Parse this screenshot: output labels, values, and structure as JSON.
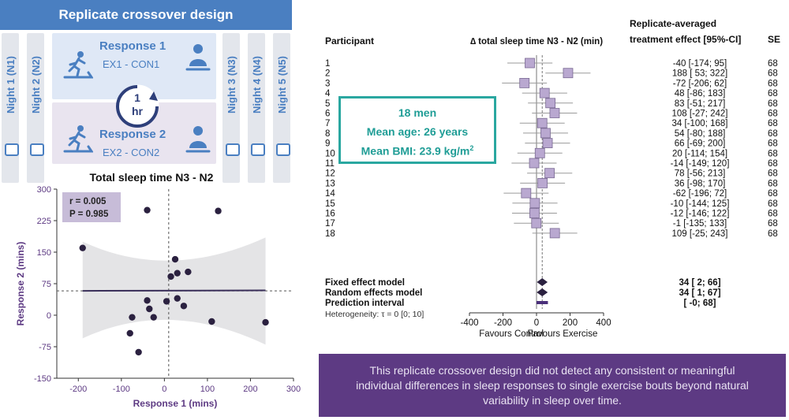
{
  "design": {
    "title": "Replicate crossover design",
    "nights": [
      "Night 1 (N1)",
      "Night 2 (N2)",
      "Night 3 (N3)",
      "Night 4 (N4)",
      "Night 5 (N5)"
    ],
    "response1_title": "Response 1",
    "response1_sub": "EX1 - CON1",
    "response2_title": "Response 2",
    "response2_sub": "EX2 - CON2",
    "gap_1": "1",
    "gap_2": "hr"
  },
  "info": {
    "line1": "18 men",
    "line2": "Mean age: 26 years",
    "line3_prefix": "Mean BMI: 23.9 kg/m",
    "line3_sup": "2"
  },
  "conclusion": "This replicate crossover design did not detect any consistent or meaningful individual differences in sleep responses to single exercise bouts beyond natural variability in sleep over time.",
  "colors": {
    "blue": "#4a7fc1",
    "purple": "#5d3a83",
    "teal": "#2aa7a0",
    "square": "#b9a8d0"
  },
  "chart_data": [
    {
      "type": "scatter",
      "title": "Total sleep time N3 - N2",
      "xlabel": "Response 1 (mins)",
      "ylabel": "Response 2 (mins)",
      "xlim": [
        -250,
        300
      ],
      "ylim": [
        -150,
        300
      ],
      "xticks": [
        -200,
        -100,
        0,
        100,
        200,
        300
      ],
      "yticks": [
        -150,
        -75,
        0,
        75,
        150,
        225,
        300
      ],
      "stats": {
        "r": "r = 0.005",
        "p": "P = 0.985"
      },
      "regression": {
        "y_at_xmin": 58,
        "y_at_xmax": 59
      },
      "mean_x": 10,
      "mean_y": 58,
      "points": [
        {
          "x": -190,
          "y": 160
        },
        {
          "x": -40,
          "y": 250
        },
        {
          "x": 125,
          "y": 248
        },
        {
          "x": 25,
          "y": 133
        },
        {
          "x": 30,
          "y": 100
        },
        {
          "x": 55,
          "y": 103
        },
        {
          "x": 15,
          "y": 92
        },
        {
          "x": -40,
          "y": 35
        },
        {
          "x": 5,
          "y": 33
        },
        {
          "x": 30,
          "y": 40
        },
        {
          "x": 45,
          "y": 22
        },
        {
          "x": -35,
          "y": 15
        },
        {
          "x": -25,
          "y": -5
        },
        {
          "x": -75,
          "y": -5
        },
        {
          "x": 110,
          "y": -15
        },
        {
          "x": 235,
          "y": -17
        },
        {
          "x": -80,
          "y": -43
        },
        {
          "x": -60,
          "y": -88
        }
      ]
    },
    {
      "type": "forest",
      "header_participant": "Participant",
      "header_axis": "∆ total sleep time N3 - N2 (min)",
      "header_effect_1": "Replicate-averaged",
      "header_effect_2": "treatment effect [95%-CI]",
      "header_se": "SE",
      "xlim": [
        -400,
        400
      ],
      "xticks": [
        -400,
        -200,
        0,
        200,
        400
      ],
      "xlabel_left": "Favours Control",
      "xlabel_right": "Favours Exercise",
      "rows": [
        {
          "id": "1",
          "est": -40,
          "lo": -174,
          "hi": 95,
          "ci": "-40 [-174;  95]",
          "se": "68"
        },
        {
          "id": "2",
          "est": 188,
          "lo": 53,
          "hi": 322,
          "ci": "188 [  53; 322]",
          "se": "68"
        },
        {
          "id": "3",
          "est": -72,
          "lo": -206,
          "hi": 62,
          "ci": "-72 [-206;  62]",
          "se": "68"
        },
        {
          "id": "4",
          "est": 48,
          "lo": -86,
          "hi": 183,
          "ci": "48 [-86; 183]",
          "se": "68"
        },
        {
          "id": "5",
          "est": 83,
          "lo": -51,
          "hi": 217,
          "ci": "83 [-51; 217]",
          "se": "68"
        },
        {
          "id": "6",
          "est": 108,
          "lo": -27,
          "hi": 242,
          "ci": "108 [-27; 242]",
          "se": "68"
        },
        {
          "id": "7",
          "est": 34,
          "lo": -100,
          "hi": 168,
          "ci": "34 [-100; 168]",
          "se": "68"
        },
        {
          "id": "8",
          "est": 54,
          "lo": -80,
          "hi": 188,
          "ci": "54 [-80; 188]",
          "se": "68"
        },
        {
          "id": "9",
          "est": 66,
          "lo": -69,
          "hi": 200,
          "ci": "66 [-69; 200]",
          "se": "68"
        },
        {
          "id": "10",
          "est": 20,
          "lo": -114,
          "hi": 154,
          "ci": "20 [-114; 154]",
          "se": "68"
        },
        {
          "id": "11",
          "est": -14,
          "lo": -149,
          "hi": 120,
          "ci": "-14 [-149; 120]",
          "se": "68"
        },
        {
          "id": "12",
          "est": 78,
          "lo": -56,
          "hi": 213,
          "ci": "78 [-56; 213]",
          "se": "68"
        },
        {
          "id": "13",
          "est": 36,
          "lo": -98,
          "hi": 170,
          "ci": "36 [-98; 170]",
          "se": "68"
        },
        {
          "id": "14",
          "est": -62,
          "lo": -196,
          "hi": 72,
          "ci": "-62 [-196;  72]",
          "se": "68"
        },
        {
          "id": "15",
          "est": -10,
          "lo": -144,
          "hi": 125,
          "ci": "-10 [-144; 125]",
          "se": "68"
        },
        {
          "id": "16",
          "est": -12,
          "lo": -146,
          "hi": 122,
          "ci": "-12 [-146; 122]",
          "se": "68"
        },
        {
          "id": "17",
          "est": -1,
          "lo": -135,
          "hi": 133,
          "ci": "-1 [-135; 133]",
          "se": "68"
        },
        {
          "id": "18",
          "est": 109,
          "lo": -25,
          "hi": 243,
          "ci": "109 [-25; 243]",
          "se": "68"
        }
      ],
      "fixed": {
        "label": "Fixed effect model",
        "est": 34,
        "lo": 2,
        "hi": 66,
        "ci": "34 [   2;  66]"
      },
      "random": {
        "label": "Random effects model",
        "est": 34,
        "lo": 1,
        "hi": 67,
        "ci": "34 [   1;  67]"
      },
      "prediction": {
        "label": "Prediction interval",
        "lo": 0,
        "hi": 68,
        "ci": "[  -0;  68]"
      },
      "heterogeneity": "Heterogeneity: τ = 0 [0; 10]"
    }
  ]
}
